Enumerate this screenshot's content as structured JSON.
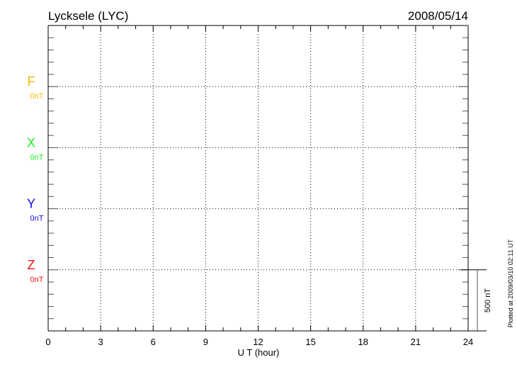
{
  "chart_data": {
    "type": "line",
    "title": "Lycksele (LYC)",
    "date": "2008/05/14",
    "xlabel": "U T (hour)",
    "xlim": [
      0,
      24
    ],
    "xticks": [
      "0",
      "3",
      "6",
      "9",
      "12",
      "15",
      "18",
      "21",
      "24"
    ],
    "grid": true,
    "series": [
      {
        "name": "F",
        "baseline_label": "0nT",
        "color": "#f5b800",
        "values": []
      },
      {
        "name": "X",
        "baseline_label": "0nT",
        "color": "#22ee22",
        "values": []
      },
      {
        "name": "Y",
        "baseline_label": "0nT",
        "color": "#1010dd",
        "values": []
      },
      {
        "name": "Z",
        "baseline_label": "0nT",
        "color": "#ee1111",
        "values": []
      }
    ],
    "scale_bar_label": "500 nT",
    "footer": "Plotted at 2009/03/10 02:11 UT"
  }
}
